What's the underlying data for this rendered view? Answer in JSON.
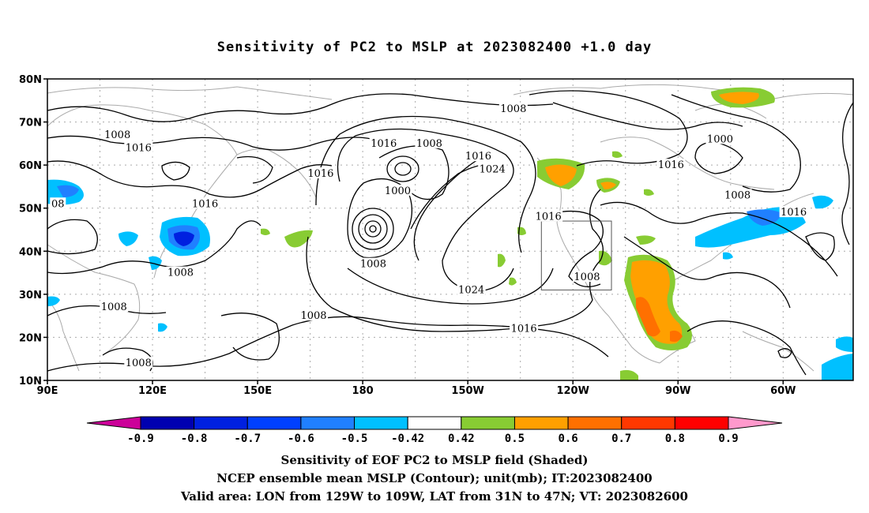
{
  "title": "Sensitivity of PC2 to MSLP at 2023082400 +1.0 day",
  "captions": [
    "Sensitivity of EOF PC2 to MSLP field (Shaded)",
    "NCEP ensemble mean MSLP (Contour); unit(mb); IT:2023082400",
    "Valid area: LON from 129W to 109W, LAT from 31N to 47N; VT: 2023082600"
  ],
  "map": {
    "lon_ticks": [
      "90E",
      "120E",
      "150E",
      "180",
      "150W",
      "120W",
      "90W",
      "60W"
    ],
    "lat_ticks": [
      "80N",
      "70N",
      "60N",
      "50N",
      "40N",
      "30N",
      "20N",
      "10N"
    ],
    "contour_labels": [
      {
        "text": "1008",
        "lon": 110,
        "lat": 67
      },
      {
        "text": "1016",
        "lon": 116,
        "lat": 64
      },
      {
        "text": "1016",
        "lon": 135,
        "lat": 51
      },
      {
        "text": "1016",
        "lon": 168,
        "lat": 58
      },
      {
        "text": "1016",
        "lon": 186,
        "lat": 65
      },
      {
        "text": "1008",
        "lon": 199,
        "lat": 65
      },
      {
        "text": "1000",
        "lon": 190,
        "lat": 54
      },
      {
        "text": "1016",
        "lon": 213,
        "lat": 62
      },
      {
        "text": "1024",
        "lon": 217,
        "lat": 59
      },
      {
        "text": "1008",
        "lon": 223,
        "lat": 73
      },
      {
        "text": "1000",
        "lon": 282,
        "lat": 66
      },
      {
        "text": "1016",
        "lon": 268,
        "lat": 60
      },
      {
        "text": "1008",
        "lon": 287,
        "lat": 53
      },
      {
        "text": "1016",
        "lon": 303,
        "lat": 49
      },
      {
        "text": "1016",
        "lon": 233,
        "lat": 48
      },
      {
        "text": "1008",
        "lon": 244,
        "lat": 34
      },
      {
        "text": "1024",
        "lon": 211,
        "lat": 31
      },
      {
        "text": "1016",
        "lon": 226,
        "lat": 22
      },
      {
        "text": "1008",
        "lon": 183,
        "lat": 37
      },
      {
        "text": "1008",
        "lon": 166,
        "lat": 25
      },
      {
        "text": "1008",
        "lon": 128,
        "lat": 35
      },
      {
        "text": "1008",
        "lon": 109,
        "lat": 27
      },
      {
        "text": "1008",
        "lon": 116,
        "lat": 14
      },
      {
        "text": "08",
        "lon": 93,
        "lat": 51
      }
    ]
  },
  "colorbar": {
    "colors": [
      "#cc0099",
      "#0000b0",
      "#0020e0",
      "#0040ff",
      "#2080ff",
      "#00c0ff",
      "#ffffff",
      "#88cc33",
      "#ffa000",
      "#ff7000",
      "#ff3800",
      "#ff0000",
      "#ff99cc"
    ],
    "labels": [
      "-0.9",
      "-0.8",
      "-0.7",
      "-0.6",
      "-0.5",
      "-0.42",
      "0.42",
      "0.5",
      "0.6",
      "0.7",
      "0.8",
      "0.9"
    ]
  }
}
